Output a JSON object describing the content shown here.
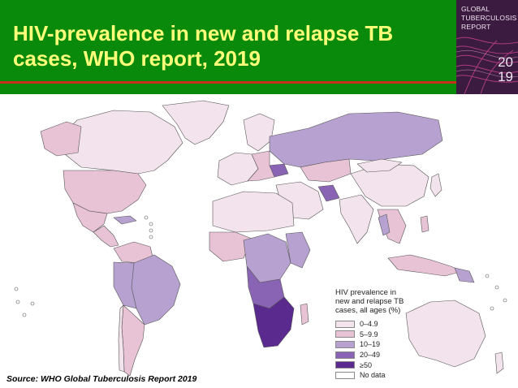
{
  "header": {
    "title_lines": [
      "HIV-prevalence in new and relapse TB",
      "cases, WHO report, 2019"
    ],
    "background": "#0a8a0a",
    "title_color": "#ffff7a",
    "rule_color": "#c8301e"
  },
  "report_cover": {
    "lines": [
      "GLOBAL",
      "TUBERCULOSIS",
      "REPORT"
    ],
    "year_lines": [
      "20",
      "19"
    ],
    "background": "#3b1c40"
  },
  "legend": {
    "title_lines": [
      "HIV prevalence in",
      "new and relapse TB",
      "cases, all ages (%)"
    ],
    "items": [
      {
        "label": "0–4.9",
        "color": "#f3e3ec"
      },
      {
        "label": "5–9.9",
        "color": "#e8c3d6"
      },
      {
        "label": "10–19",
        "color": "#b7a1d1"
      },
      {
        "label": "20–49",
        "color": "#8a64b4"
      },
      {
        "label": "≥50",
        "color": "#5b2a8e"
      },
      {
        "label": "No data",
        "color": "#ffffff"
      }
    ]
  },
  "source": "Source: WHO Global Tuberculosis Report 2019",
  "map": {
    "ocean_color": "#ffffff",
    "border_color": "#555555",
    "no_data_color": "#9a9a9a"
  }
}
